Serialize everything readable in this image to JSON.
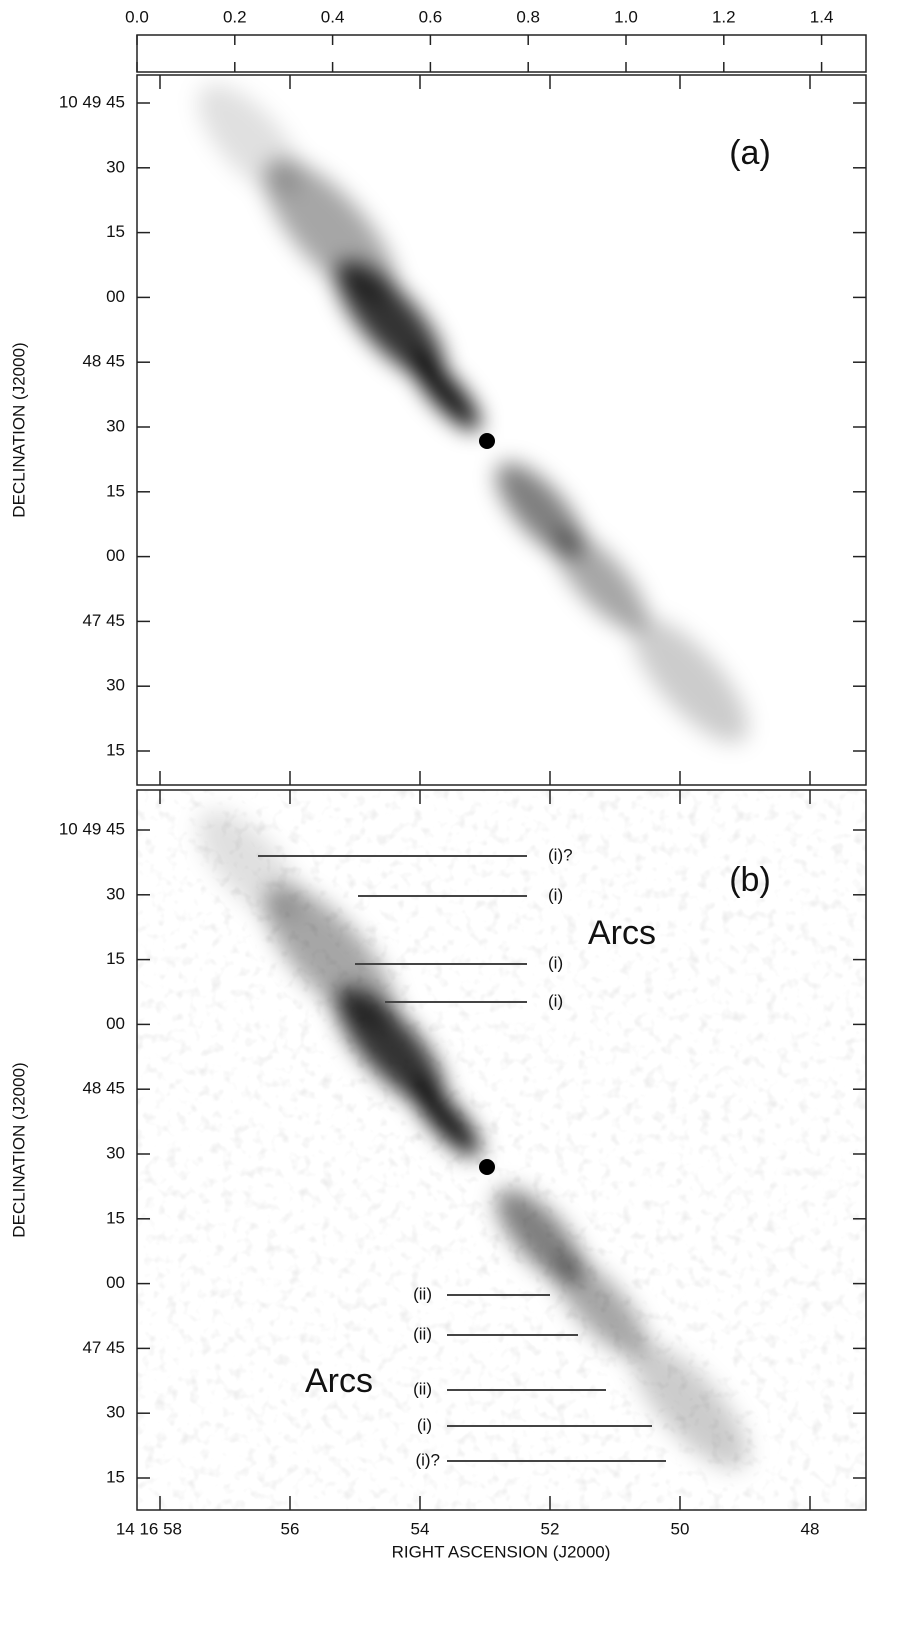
{
  "colorbar": {
    "ticks": [
      "0.0",
      "0.2",
      "0.4",
      "0.6",
      "0.8",
      "1.0",
      "1.2",
      "1.4"
    ]
  },
  "panels": [
    {
      "label": "(a)",
      "yticks": [
        "10 49 45",
        "30",
        "15",
        "00",
        "48 45",
        "30",
        "15",
        "00",
        "47 45",
        "30",
        "15"
      ]
    },
    {
      "label": "(b)",
      "yticks": [
        "10 49 45",
        "30",
        "15",
        "00",
        "48 45",
        "30",
        "15",
        "00",
        "47 45",
        "30",
        "15"
      ],
      "arcs": [
        "Arcs",
        "Arcs"
      ],
      "annotations": [
        "(i)?",
        "(i)",
        "(i)",
        "(i)",
        "(ii)",
        "(ii)",
        "(ii)",
        "(i)",
        "(i)?"
      ]
    }
  ],
  "xticks": [
    "14 16 58",
    "56",
    "54",
    "52",
    "50",
    "48"
  ],
  "xlabel": "RIGHT ASCENSION (J2000)",
  "ylabel": "DECLINATION (J2000)"
}
